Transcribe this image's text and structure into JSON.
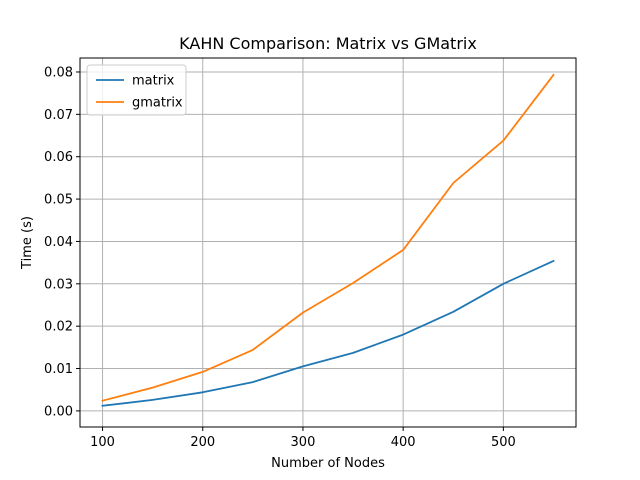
{
  "chart_data": {
    "type": "line",
    "title": "KAHN Comparison: Matrix vs GMatrix",
    "xlabel": "Number of Nodes",
    "ylabel": "Time (s)",
    "x": [
      100,
      150,
      200,
      250,
      300,
      350,
      400,
      450,
      500,
      550
    ],
    "xlim": [
      77.5,
      572.5
    ],
    "ylim": [
      -0.0038,
      0.0833
    ],
    "xticks": [
      100,
      200,
      300,
      400,
      500
    ],
    "xtick_labels": [
      "100",
      "200",
      "300",
      "400",
      "500"
    ],
    "yticks": [
      0.0,
      0.01,
      0.02,
      0.03,
      0.04,
      0.05,
      0.06,
      0.07,
      0.08
    ],
    "ytick_labels": [
      "0.00",
      "0.01",
      "0.02",
      "0.03",
      "0.04",
      "0.05",
      "0.06",
      "0.07",
      "0.08"
    ],
    "grid": true,
    "legend_position": "top-left",
    "series": [
      {
        "name": "matrix",
        "color": "#1f77b4",
        "values": [
          0.0012,
          0.0026,
          0.0044,
          0.0068,
          0.0105,
          0.0137,
          0.018,
          0.0234,
          0.03,
          0.0354
        ]
      },
      {
        "name": "gmatrix",
        "color": "#ff7f0e",
        "values": [
          0.0024,
          0.0055,
          0.0092,
          0.0144,
          0.0232,
          0.0302,
          0.038,
          0.0538,
          0.0638,
          0.0793
        ]
      }
    ]
  }
}
